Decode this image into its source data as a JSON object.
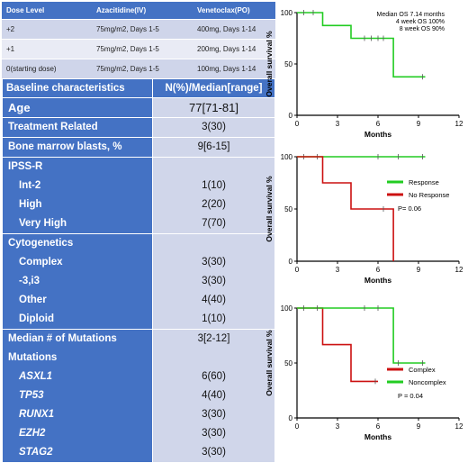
{
  "dose_table": {
    "headers": [
      "Dose Level",
      "Azacitidine(IV)",
      "Venetoclax(PO)"
    ],
    "rows": [
      [
        "+2",
        "75mg/m2, Days 1-5",
        "400mg, Days 1-14"
      ],
      [
        "+1",
        "75mg/m2, Days 1-5",
        "200mg, Days 1-14"
      ],
      [
        "0(starting dose)",
        "75mg/m2, Days 1-5",
        "100mg, Days 1-14"
      ]
    ]
  },
  "baseline_table": {
    "headers": [
      "Baseline characteristics",
      "N(%)/Median[range]"
    ],
    "groups": [
      {
        "rows": [
          {
            "label": "Age",
            "value": "77[71-81]",
            "style": "big"
          }
        ]
      },
      {
        "rows": [
          {
            "label": "Treatment Related",
            "value": "3(30)",
            "style": "main"
          }
        ]
      },
      {
        "rows": [
          {
            "label": "Bone marrow blasts, %",
            "value": "9[6-15]",
            "style": "main"
          }
        ]
      },
      {
        "rows": [
          {
            "label": "IPSS-R",
            "value": "",
            "style": "main"
          },
          {
            "label": "Int-2",
            "value": "1(10)",
            "style": "sub"
          },
          {
            "label": "High",
            "value": "2(20)",
            "style": "sub"
          },
          {
            "label": "Very High",
            "value": "7(70)",
            "style": "sub"
          }
        ]
      },
      {
        "rows": [
          {
            "label": "Cytogenetics",
            "value": "",
            "style": "main"
          },
          {
            "label": "Complex",
            "value": "3(30)",
            "style": "sub"
          },
          {
            "label": "-3,i3",
            "value": "3(30)",
            "style": "sub"
          },
          {
            "label": "Other",
            "value": "4(40)",
            "style": "sub"
          },
          {
            "label": "Diploid",
            "value": "1(10)",
            "style": "sub"
          }
        ]
      },
      {
        "rows": [
          {
            "label": "Median # of Mutations",
            "value": "3[2-12]",
            "style": "main"
          },
          {
            "label": "Mutations",
            "value": "",
            "style": "main"
          },
          {
            "label": "ASXL1",
            "value": "6(60)",
            "style": "sub it"
          },
          {
            "label": "TP53",
            "value": "4(40)",
            "style": "sub it"
          },
          {
            "label": "RUNX1",
            "value": "3(30)",
            "style": "sub it"
          },
          {
            "label": "EZH2",
            "value": "3(30)",
            "style": "sub it"
          },
          {
            "label": "STAG2",
            "value": "3(30)",
            "style": "sub it"
          }
        ]
      }
    ]
  },
  "chart_data": [
    {
      "type": "line",
      "xlabel": "Months",
      "ylabel": "Overall survival %",
      "xlim": [
        0,
        12
      ],
      "ylim": [
        0,
        100
      ],
      "xticks": [
        0,
        3,
        6,
        9,
        12
      ],
      "yticks": [
        0,
        50,
        100
      ],
      "annotations": [
        "Median OS 7.14 months",
        "4 week OS  100%",
        "8 week OS 90%"
      ],
      "series": [
        {
          "color": "#22cc22",
          "steps": [
            [
              0,
              100
            ],
            [
              1.9,
              100
            ],
            [
              1.9,
              87.5
            ],
            [
              4,
              87.5
            ],
            [
              4,
              75
            ],
            [
              7.14,
              75
            ],
            [
              7.14,
              37.5
            ],
            [
              9.5,
              37.5
            ]
          ],
          "censors": [
            [
              0.5,
              100
            ],
            [
              1.2,
              100
            ],
            [
              5,
              75
            ],
            [
              5.5,
              75
            ],
            [
              6,
              75
            ],
            [
              6.4,
              75
            ],
            [
              9.3,
              37.5
            ]
          ]
        }
      ]
    },
    {
      "type": "line",
      "xlabel": "Months",
      "ylabel": "Overall survival %",
      "xlim": [
        0,
        12
      ],
      "ylim": [
        0,
        100
      ],
      "xticks": [
        0,
        3,
        6,
        9,
        12
      ],
      "yticks": [
        0,
        50,
        100
      ],
      "legend_position": "right",
      "annotations": [
        "P= 0.06"
      ],
      "series": [
        {
          "name": "Response",
          "color": "#22cc22",
          "steps": [
            [
              0,
              100
            ],
            [
              9.5,
              100
            ]
          ],
          "censors": [
            [
              0.5,
              100
            ],
            [
              1.5,
              100
            ],
            [
              6,
              100
            ],
            [
              7.5,
              100
            ],
            [
              9.3,
              100
            ]
          ]
        },
        {
          "name": "No Response",
          "color": "#cc1111",
          "steps": [
            [
              0,
              100
            ],
            [
              1.9,
              100
            ],
            [
              1.9,
              75
            ],
            [
              4,
              75
            ],
            [
              4,
              50
            ],
            [
              7.14,
              50
            ],
            [
              7.14,
              0
            ]
          ],
          "censors": [
            [
              6.4,
              50
            ]
          ]
        }
      ]
    },
    {
      "type": "line",
      "xlabel": "Months",
      "ylabel": "Overall survival %",
      "xlim": [
        0,
        12
      ],
      "ylim": [
        0,
        100
      ],
      "xticks": [
        0,
        3,
        6,
        9,
        12
      ],
      "yticks": [
        0,
        50,
        100
      ],
      "legend_position": "right",
      "annotations": [
        "P = 0.04"
      ],
      "series": [
        {
          "name": "Complex",
          "color": "#cc1111",
          "steps": [
            [
              0,
              100
            ],
            [
              1.9,
              100
            ],
            [
              1.9,
              66.7
            ],
            [
              4,
              66.7
            ],
            [
              4,
              33.3
            ],
            [
              6,
              33.3
            ]
          ],
          "censors": [
            [
              5.8,
              33.3
            ]
          ]
        },
        {
          "name": "Noncomplex",
          "color": "#22cc22",
          "steps": [
            [
              0,
              100
            ],
            [
              7.14,
              100
            ],
            [
              7.14,
              50
            ],
            [
              9.5,
              50
            ]
          ],
          "censors": [
            [
              0.5,
              100
            ],
            [
              1.5,
              100
            ],
            [
              5,
              100
            ],
            [
              6,
              100
            ],
            [
              7.5,
              50
            ],
            [
              9.3,
              50
            ]
          ]
        }
      ]
    }
  ]
}
